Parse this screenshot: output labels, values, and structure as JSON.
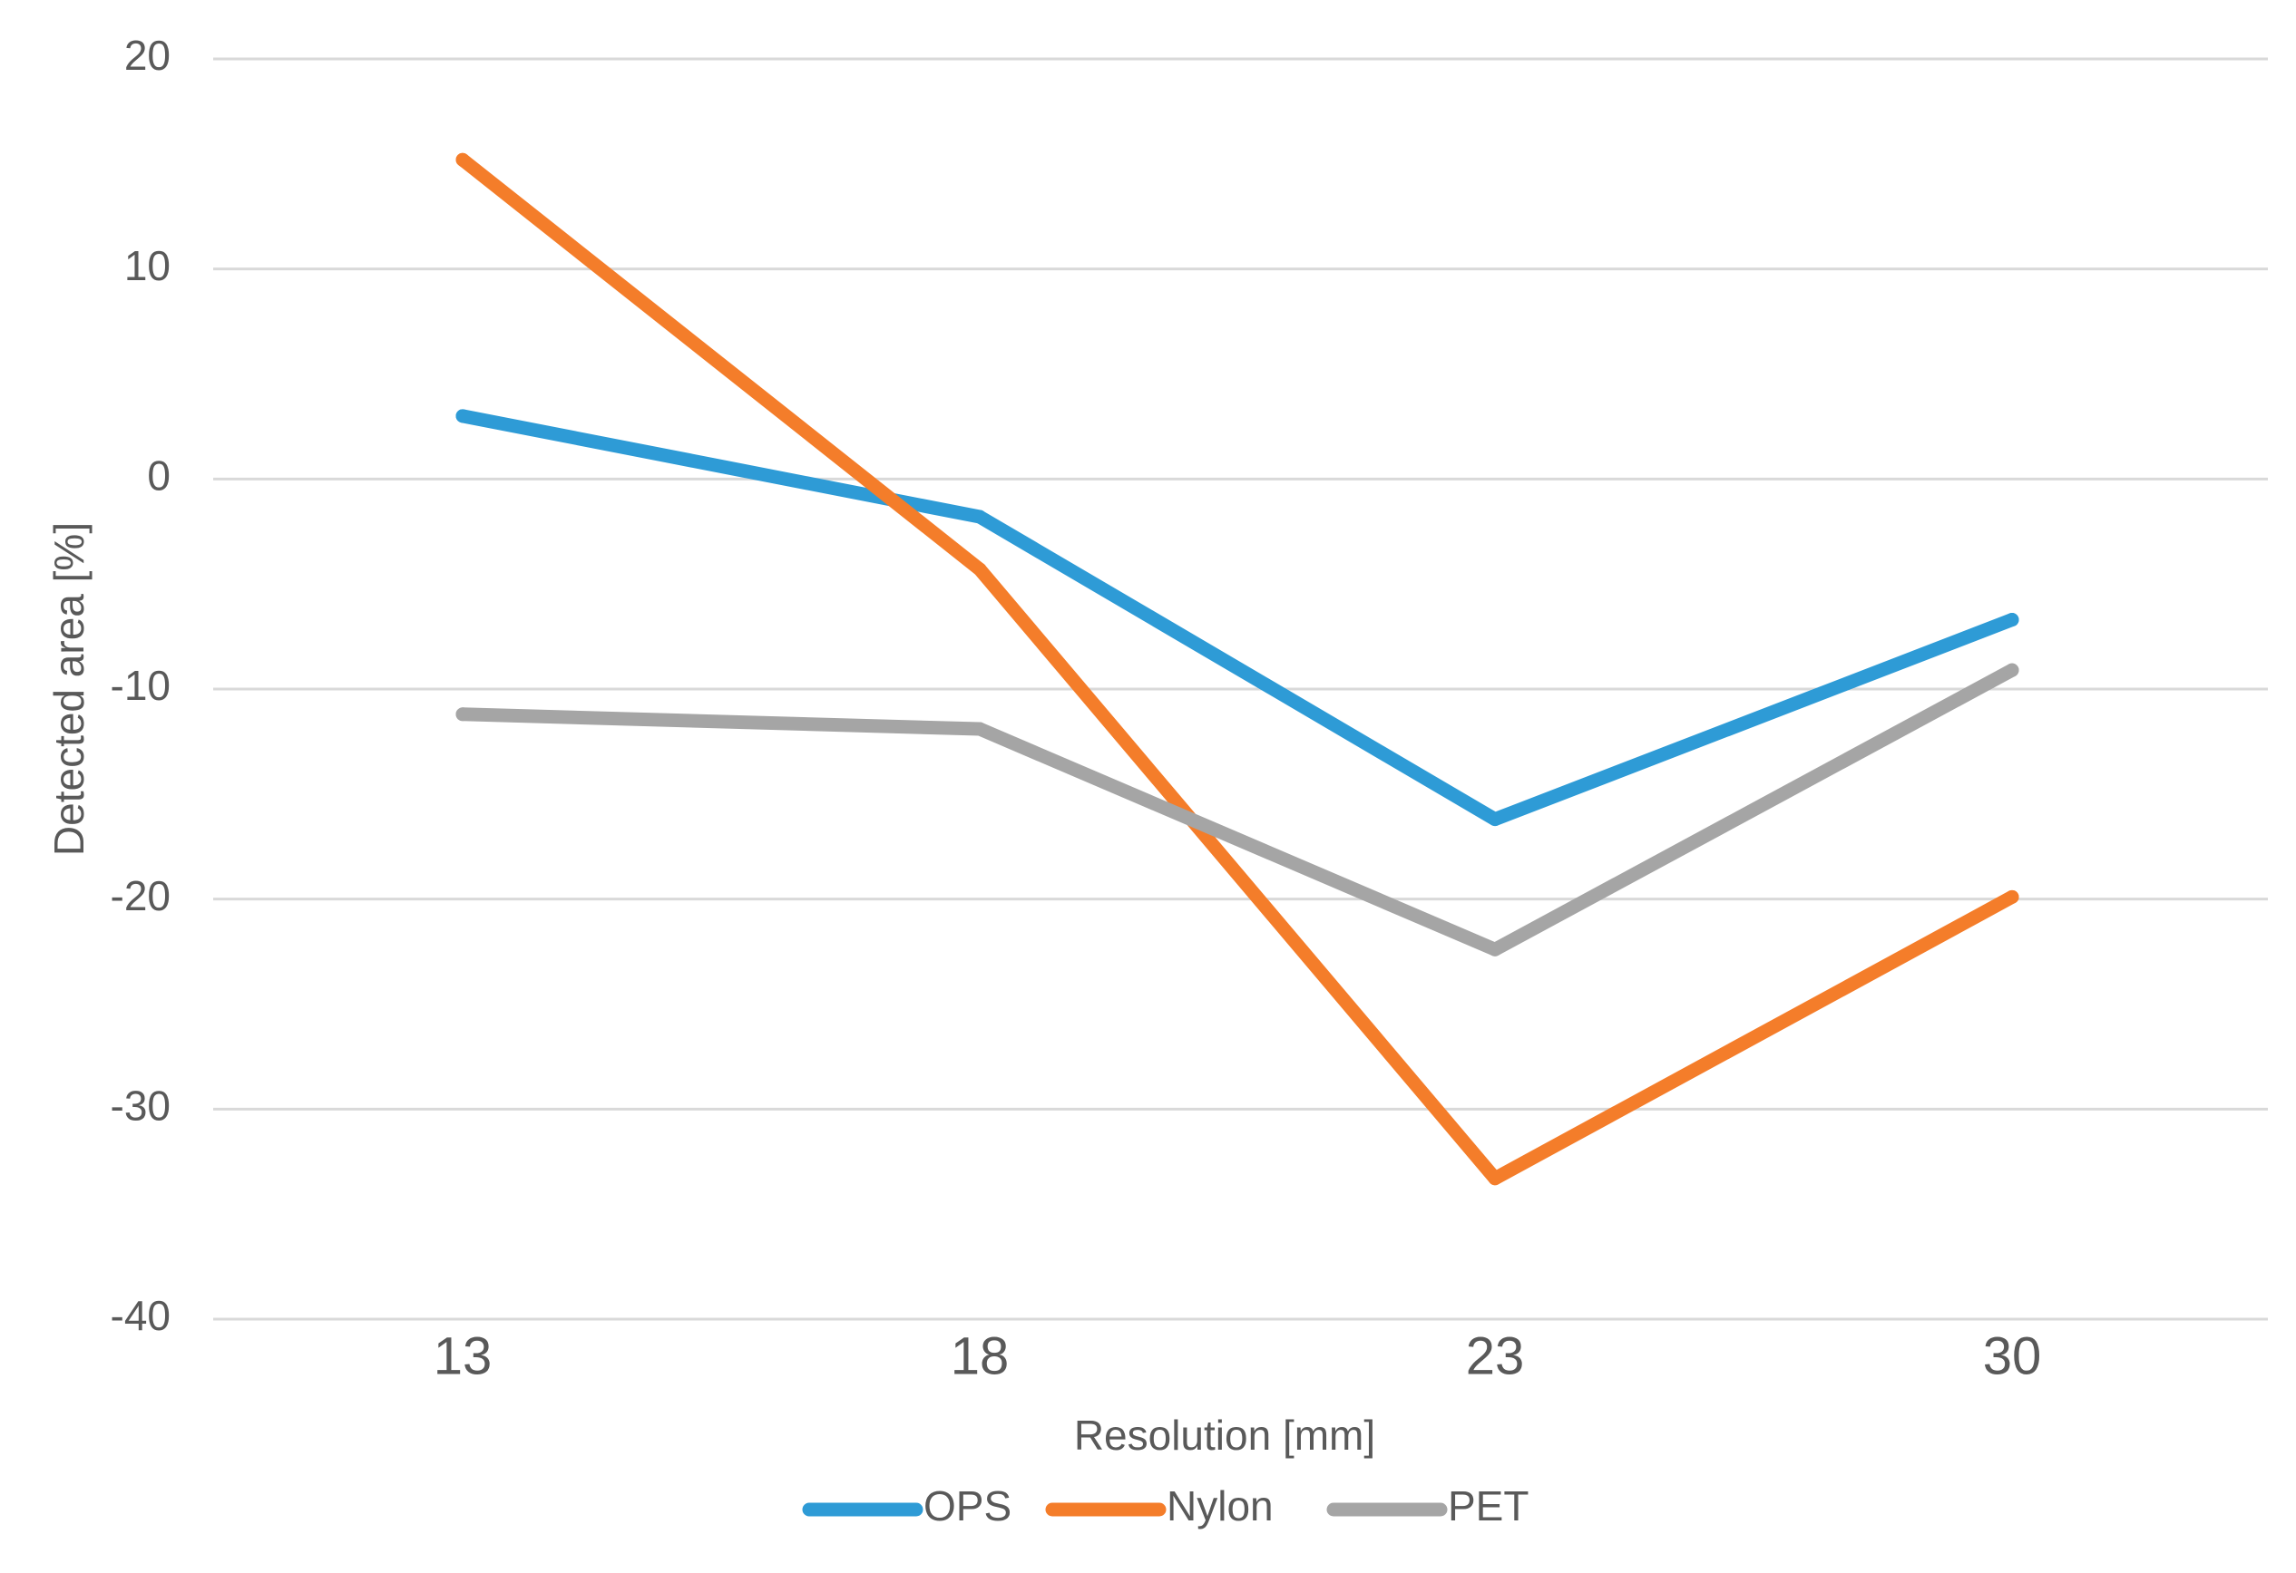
{
  "chart_data": {
    "type": "line",
    "title": "",
    "xlabel": "Resolution [mm]",
    "ylabel": "Detected area [%]",
    "categories": [
      "13",
      "18",
      "23",
      "30"
    ],
    "ylim": [
      -40,
      20
    ],
    "yticks": [
      "20",
      "10",
      "0",
      "-10",
      "-20",
      "-30",
      "-40"
    ],
    "grid": true,
    "legend_position": "bottom",
    "series": [
      {
        "name": "OPS",
        "color": "#2e9bd6",
        "values": [
          3,
          -1.8,
          -16.2,
          -6.7
        ]
      },
      {
        "name": "Nylon",
        "color": "#f47d2a",
        "values": [
          15.2,
          -4.3,
          -33.3,
          -19.9
        ]
      },
      {
        "name": "PET",
        "color": "#a5a5a5",
        "values": [
          -11.2,
          -11.9,
          -22.4,
          -9.1
        ]
      }
    ]
  }
}
